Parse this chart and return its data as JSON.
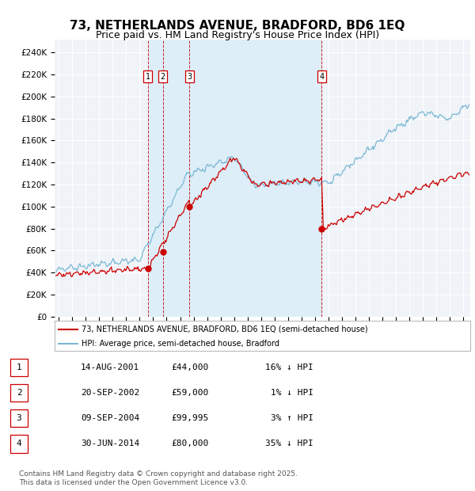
{
  "title": "73, NETHERLANDS AVENUE, BRADFORD, BD6 1EQ",
  "subtitle": "Price paid vs. HM Land Registry's House Price Index (HPI)",
  "ylabel_ticks": [
    "£0",
    "£20K",
    "£40K",
    "£60K",
    "£80K",
    "£100K",
    "£120K",
    "£140K",
    "£160K",
    "£180K",
    "£200K",
    "£220K",
    "£240K"
  ],
  "ytick_values": [
    0,
    20000,
    40000,
    60000,
    80000,
    100000,
    120000,
    140000,
    160000,
    180000,
    200000,
    220000,
    240000
  ],
  "ylim": [
    0,
    252000
  ],
  "xlim_start": 1994.7,
  "xlim_end": 2025.5,
  "hpi_color": "#7bb8d4",
  "price_color": "#cc0000",
  "shade_color": "#ddeef8",
  "plot_bg_color": "#f0f4f8",
  "sale_dates": [
    2001.617,
    2002.722,
    2004.689,
    2014.497
  ],
  "sale_prices": [
    44000,
    59000,
    99995,
    80000
  ],
  "sale_labels": [
    "1",
    "2",
    "3",
    "4"
  ],
  "vline_color": "#cc0000",
  "legend_house": "73, NETHERLANDS AVENUE, BRADFORD, BD6 1EQ (semi-detached house)",
  "legend_hpi": "HPI: Average price, semi-detached house, Bradford",
  "table_rows": [
    [
      "1",
      "14-AUG-2001",
      "£44,000",
      "16% ↓ HPI"
    ],
    [
      "2",
      "20-SEP-2002",
      "£59,000",
      "1% ↓ HPI"
    ],
    [
      "3",
      "09-SEP-2004",
      "£99,995",
      "3% ↑ HPI"
    ],
    [
      "4",
      "30-JUN-2014",
      "£80,000",
      "35% ↓ HPI"
    ]
  ],
  "footer": "Contains HM Land Registry data © Crown copyright and database right 2025.\nThis data is licensed under the Open Government Licence v3.0.",
  "title_fontsize": 11,
  "subtitle_fontsize": 9,
  "tick_fontsize": 7.5
}
